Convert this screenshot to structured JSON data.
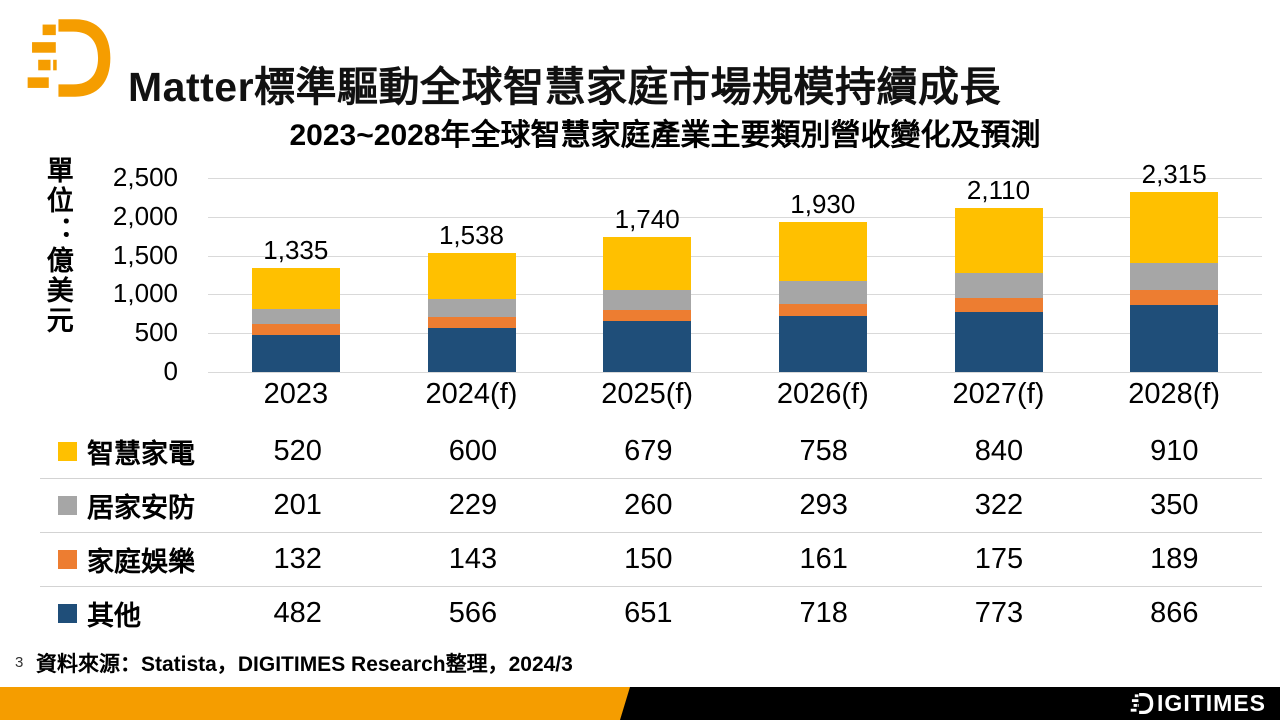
{
  "header": {
    "title": "Matter標準驅動全球智慧家庭市場規模持續成長",
    "logo": "digitimes-d-mark"
  },
  "chart_data": {
    "type": "bar",
    "stacked": true,
    "title": "2023~2028年全球智慧家庭產業主要類別營收變化及預測",
    "unit_label": "單位：億美元",
    "categories": [
      "2023",
      "2024(f)",
      "2025(f)",
      "2026(f)",
      "2027(f)",
      "2028(f)"
    ],
    "totals": [
      "1,335",
      "1,538",
      "1,740",
      "1,930",
      "2,110",
      "2,315"
    ],
    "series": [
      {
        "name": "智慧家電",
        "color": "#FFC000",
        "values": [
          520,
          600,
          679,
          758,
          840,
          910
        ]
      },
      {
        "name": "居家安防",
        "color": "#A6A6A6",
        "values": [
          201,
          229,
          260,
          293,
          322,
          350
        ]
      },
      {
        "name": "家庭娛樂",
        "color": "#ED7D31",
        "values": [
          132,
          143,
          150,
          161,
          175,
          189
        ]
      },
      {
        "name": "其他",
        "color": "#1F4E79",
        "values": [
          482,
          566,
          651,
          718,
          773,
          866
        ]
      }
    ],
    "stack_order_bottom_to_top": [
      "其他",
      "家庭娛樂",
      "居家安防",
      "智慧家電"
    ],
    "ylim": [
      0,
      2500
    ],
    "ytick_step": 500,
    "yticks": [
      "2,500",
      "2,000",
      "1,500",
      "1,000",
      "500",
      "0"
    ],
    "grid": true,
    "legend_position": "table-left"
  },
  "footer": {
    "page_number": "3",
    "source": "資料來源：Statista，DIGITIMES Research整理，2024/3",
    "brand": "DIGITIMES"
  },
  "colors": {
    "brand_orange": "#F59D00",
    "bottom_bar_black": "#000000",
    "gridline": "#D9D9D9"
  }
}
